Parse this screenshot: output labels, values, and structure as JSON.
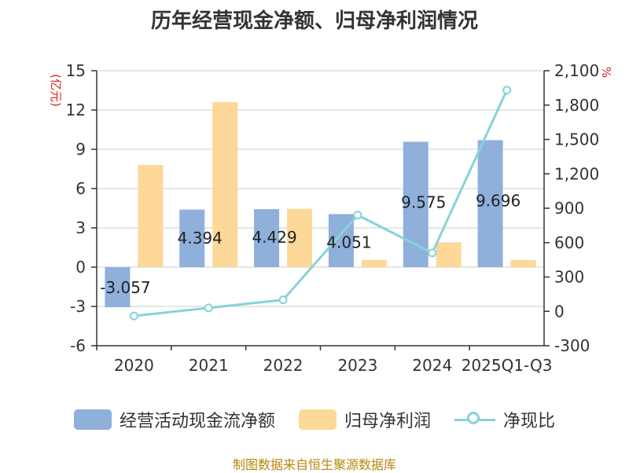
{
  "title": "历年经营现金净额、归母净利润情况",
  "footer": "制图数据来自恒生聚源数据库",
  "colors": {
    "operating_cash": "#8eb0db",
    "net_profit": "#fdd898",
    "ratio": "#86d3d8",
    "axis": "#333333",
    "grid": "#cccccc",
    "unit_left": "#e02020",
    "unit_right": "#e02020",
    "footer": "#b8860b"
  },
  "chart_data": {
    "type": "bar",
    "categories": [
      "2020",
      "2021",
      "2022",
      "2023",
      "2024",
      "2025Q1-Q3"
    ],
    "y_left": {
      "unit": "(亿元)",
      "ticks": [
        "-6",
        "-3",
        "0",
        "3",
        "6",
        "9",
        "12",
        "15"
      ],
      "ylim": [
        -6,
        15
      ]
    },
    "y_right": {
      "unit": "%",
      "ticks": [
        "-300",
        "0",
        "300",
        "600",
        "900",
        "1,200",
        "1,500",
        "1,800",
        "2,100"
      ],
      "ylim": [
        -300,
        2100
      ]
    },
    "grid": true,
    "legend_position": "bottom",
    "series": [
      {
        "name": "经营活动现金流净额",
        "type": "bar",
        "axis": "left",
        "values": [
          -3.057,
          4.394,
          4.429,
          4.051,
          9.575,
          9.696
        ],
        "labels": [
          "-3.057",
          "4.394",
          "4.429",
          "4.051",
          "9.575",
          "9.696"
        ]
      },
      {
        "name": "归母净利润",
        "type": "bar",
        "axis": "left",
        "values": [
          7.8,
          12.6,
          4.45,
          0.55,
          1.9,
          0.55
        ]
      },
      {
        "name": "净现比",
        "type": "line",
        "axis": "right",
        "values": [
          -40,
          30,
          100,
          840,
          510,
          1930
        ]
      }
    ]
  }
}
